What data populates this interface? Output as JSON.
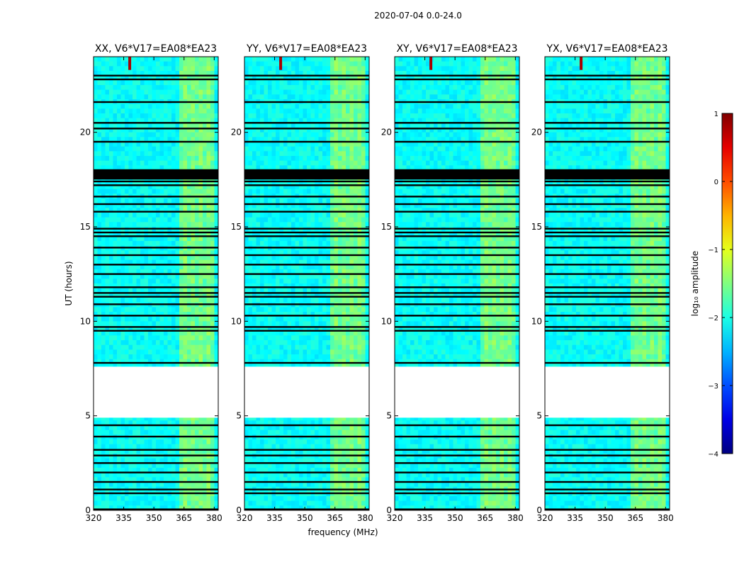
{
  "chart_data": {
    "type": "heatmap",
    "suptitle": "2020-07-04 0.0-24.0",
    "xlabel": "frequency (MHz)",
    "ylabel": "UT (hours)",
    "xlim": [
      320,
      382
    ],
    "ylim": [
      0,
      24
    ],
    "xticks": [
      "320",
      "335",
      "350",
      "365",
      "380"
    ],
    "yticks": [
      "0",
      "5",
      "10",
      "15",
      "20"
    ],
    "xtick_values": [
      320,
      335,
      350,
      365,
      380
    ],
    "ytick_values": [
      0,
      5,
      10,
      15,
      20
    ],
    "panels": [
      {
        "title": "XX, V6*V17=EA08*EA23",
        "pol": "XX"
      },
      {
        "title": "YY, V6*V17=EA08*EA23",
        "pol": "YY"
      },
      {
        "title": "XY, V6*V17=EA08*EA23",
        "pol": "XY"
      },
      {
        "title": "YX, V6*V17=EA08*EA23",
        "pol": "YX"
      }
    ],
    "colorbar": {
      "label": "log₁₀ amplitude",
      "vmin": -4,
      "vmax": 1,
      "ticks": [
        "1",
        "0",
        "−1",
        "−2",
        "−3",
        "−4"
      ],
      "tick_values": [
        1,
        0,
        -1,
        -2,
        -3,
        -4
      ],
      "colormap": "jet"
    },
    "no_data_range_hours": [
      4.9,
      7.6
    ],
    "background_log_amplitude": -2.1,
    "rfi_band_mhz": [
      363,
      380
    ],
    "rfi_band_log_amplitude": -1.5,
    "strong_rfi_channel_mhz": 338,
    "strong_rfi_hours": [
      23.3,
      24
    ],
    "strong_rfi_log_amplitude": 0.8,
    "flagged_hours": [
      0.05,
      0.9,
      1.1,
      1.5,
      2.0,
      2.5,
      2.9,
      3.2,
      3.9,
      4.5,
      5.0,
      7.8,
      9.5,
      9.7,
      10.3,
      10.9,
      11.3,
      11.5,
      11.8,
      12.5,
      13.0,
      13.5,
      13.9,
      14.5,
      14.7,
      14.9,
      15.8,
      16.2,
      16.6,
      17.2,
      17.4,
      17.6,
      18.0,
      19.5,
      20.2,
      20.5,
      21.6,
      22.8,
      23.0
    ]
  }
}
